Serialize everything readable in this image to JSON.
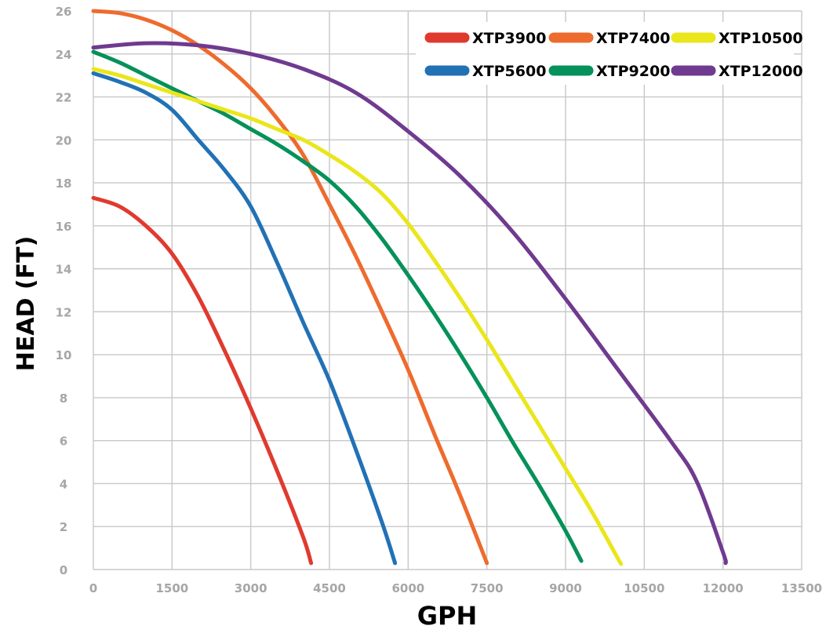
{
  "chart_data": {
    "type": "line",
    "title": "",
    "xlabel": "GPH",
    "ylabel": "HEAD (FT)",
    "xlim": [
      0,
      13500
    ],
    "ylim": [
      0,
      26
    ],
    "x_ticks": [
      "0",
      "1500",
      "3000",
      "4500",
      "6000",
      "7500",
      "9000",
      "10500",
      "12000",
      "13500"
    ],
    "y_ticks": [
      "0",
      "2",
      "4",
      "6",
      "8",
      "10",
      "12",
      "14",
      "16",
      "18",
      "20",
      "22",
      "24",
      "26"
    ],
    "grid": true,
    "legend_position": "top-right",
    "series": [
      {
        "name": "XTP3900",
        "color": "#e03a2f",
        "points": [
          [
            0,
            17.3
          ],
          [
            500,
            16.9
          ],
          [
            1000,
            16
          ],
          [
            1500,
            14.7
          ],
          [
            2000,
            12.7
          ],
          [
            2500,
            10.2
          ],
          [
            3000,
            7.5
          ],
          [
            3500,
            4.6
          ],
          [
            4000,
            1.5
          ],
          [
            4150,
            0.3
          ]
        ]
      },
      {
        "name": "XTP5600",
        "color": "#2271b5",
        "points": [
          [
            0,
            23.1
          ],
          [
            500,
            22.7
          ],
          [
            1000,
            22.2
          ],
          [
            1500,
            21.4
          ],
          [
            2000,
            20
          ],
          [
            2500,
            18.6
          ],
          [
            3000,
            16.9
          ],
          [
            3500,
            14.3
          ],
          [
            4000,
            11.5
          ],
          [
            4500,
            8.8
          ],
          [
            5000,
            5.6
          ],
          [
            5500,
            2.2
          ],
          [
            5750,
            0.3
          ]
        ]
      },
      {
        "name": "XTP7400",
        "color": "#ee6b2e",
        "points": [
          [
            0,
            26
          ],
          [
            500,
            25.9
          ],
          [
            1000,
            25.6
          ],
          [
            1500,
            25.1
          ],
          [
            2000,
            24.4
          ],
          [
            2500,
            23.5
          ],
          [
            3000,
            22.4
          ],
          [
            3500,
            21
          ],
          [
            4000,
            19.3
          ],
          [
            4500,
            17
          ],
          [
            5000,
            14.6
          ],
          [
            5500,
            12
          ],
          [
            6000,
            9.3
          ],
          [
            6500,
            6.3
          ],
          [
            7000,
            3.4
          ],
          [
            7500,
            0.3
          ]
        ]
      },
      {
        "name": "XTP9200",
        "color": "#05915a",
        "points": [
          [
            0,
            24.1
          ],
          [
            500,
            23.6
          ],
          [
            1000,
            23
          ],
          [
            1500,
            22.4
          ],
          [
            2000,
            21.8
          ],
          [
            2500,
            21.2
          ],
          [
            3000,
            20.5
          ],
          [
            3500,
            19.8
          ],
          [
            4000,
            19
          ],
          [
            4500,
            18.1
          ],
          [
            5000,
            16.9
          ],
          [
            5500,
            15.4
          ],
          [
            6000,
            13.7
          ],
          [
            6500,
            11.9
          ],
          [
            7000,
            10
          ],
          [
            7500,
            8
          ],
          [
            8000,
            5.9
          ],
          [
            8500,
            3.9
          ],
          [
            9000,
            1.8
          ],
          [
            9300,
            0.4
          ]
        ]
      },
      {
        "name": "XTP10500",
        "color": "#eae61c",
        "points": [
          [
            0,
            23.3
          ],
          [
            500,
            23
          ],
          [
            1000,
            22.6
          ],
          [
            1500,
            22.2
          ],
          [
            2000,
            21.8
          ],
          [
            2500,
            21.4
          ],
          [
            3000,
            21
          ],
          [
            3500,
            20.5
          ],
          [
            4000,
            20
          ],
          [
            4500,
            19.3
          ],
          [
            5000,
            18.5
          ],
          [
            5500,
            17.5
          ],
          [
            6000,
            16.1
          ],
          [
            6500,
            14.4
          ],
          [
            7000,
            12.6
          ],
          [
            7500,
            10.7
          ],
          [
            8000,
            8.7
          ],
          [
            8500,
            6.7
          ],
          [
            9000,
            4.7
          ],
          [
            9500,
            2.7
          ],
          [
            10000,
            0.5
          ],
          [
            10050,
            0.3
          ]
        ]
      },
      {
        "name": "XTP12000",
        "color": "#6f3a8f",
        "points": [
          [
            0,
            24.3
          ],
          [
            1000,
            24.5
          ],
          [
            2000,
            24.4
          ],
          [
            3000,
            24
          ],
          [
            4000,
            23.3
          ],
          [
            5000,
            22.2
          ],
          [
            6000,
            20.4
          ],
          [
            7000,
            18.3
          ],
          [
            8000,
            15.7
          ],
          [
            9000,
            12.6
          ],
          [
            10000,
            9.3
          ],
          [
            11000,
            6
          ],
          [
            11500,
            4.1
          ],
          [
            12000,
            0.8
          ],
          [
            12050,
            0.3
          ]
        ]
      }
    ]
  }
}
